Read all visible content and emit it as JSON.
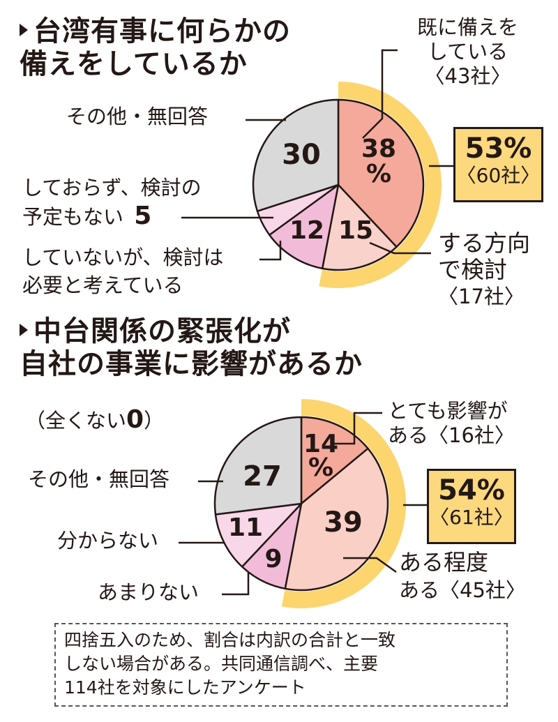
{
  "titles": {
    "chart1_line1": "台湾有事に何らかの",
    "chart1_line2": "備えをしているか",
    "chart2_line1": "中台関係の緊張化が",
    "chart2_line2": "自社の事業に影響があるか"
  },
  "chart1": {
    "labels": {
      "prepared_1": "既に備えを",
      "prepared_2": "している",
      "prepared_3": "〈43社〉",
      "other": "その他・無回答",
      "no_plan_1": "しておらず、検討の",
      "no_plan_2": "予定もない",
      "no_plan_value": "5",
      "need_1": "していないが、検討は",
      "need_2": "必要と考えている",
      "considering_1": "する方向",
      "considering_2": "で検討",
      "considering_3": "〈17社〉"
    },
    "numbers": {
      "prepared_a": "38",
      "prepared_b": "%",
      "other": "30",
      "need": "12",
      "considering": "15"
    },
    "callout": {
      "percent": "53%",
      "count": "〈60社〉"
    }
  },
  "chart2": {
    "labels": {
      "none_prefix": "（全くない",
      "none_value": "0",
      "none_suffix": "）",
      "very_1": "とても影響が",
      "very_2": "ある〈16社〉",
      "other": "その他・無回答",
      "unknown": "分からない",
      "little": "あまりない",
      "some_1": "ある程度",
      "some_2": "ある〈45社〉"
    },
    "numbers": {
      "very_a": "14",
      "very_b": "%",
      "other": "27",
      "unknown": "11",
      "little": "9",
      "some": "39"
    },
    "callout": {
      "percent": "54%",
      "count": "〈61社〉"
    }
  },
  "note": {
    "line1": "四捨五入のため、割合は内訳の合計と一致",
    "line2": "しない場合がある。共同通信調べ、主要",
    "line3": "114社を対象にしたアンケート"
  },
  "colors": {
    "ring": "#fcd56f",
    "outline": "#231815",
    "prepared": "#f4a99a",
    "considering": "#f9d2cb",
    "need": "#f2bcd8",
    "no_plan": "#f8d7e8",
    "other": "#d9d9da",
    "some": "#f9cfc6"
  },
  "chart_data": [
    {
      "type": "pie",
      "title": "台湾有事に何らかの備えをしているか",
      "unit": "%",
      "slices": [
        {
          "label": "既に備えをしている",
          "value": 38,
          "companies": 43
        },
        {
          "label": "する方向で検討",
          "value": 15,
          "companies": 17
        },
        {
          "label": "していないが、検討は必要と考えている",
          "value": 12
        },
        {
          "label": "しておらず、検討の予定もない",
          "value": 5
        },
        {
          "label": "その他・無回答",
          "value": 30
        }
      ],
      "highlight": {
        "label": "備えをしている＋する方向で検討",
        "value": 53,
        "companies": 60
      }
    },
    {
      "type": "pie",
      "title": "中台関係の緊張化が自社の事業に影響があるか",
      "unit": "%",
      "slices": [
        {
          "label": "とても影響がある",
          "value": 14,
          "companies": 16
        },
        {
          "label": "ある程度ある",
          "value": 39,
          "companies": 45
        },
        {
          "label": "あまりない",
          "value": 9
        },
        {
          "label": "分からない",
          "value": 11
        },
        {
          "label": "その他・無回答",
          "value": 27
        },
        {
          "label": "全くない",
          "value": 0
        }
      ],
      "highlight": {
        "label": "とても影響がある＋ある程度ある",
        "value": 54,
        "companies": 61
      }
    }
  ]
}
